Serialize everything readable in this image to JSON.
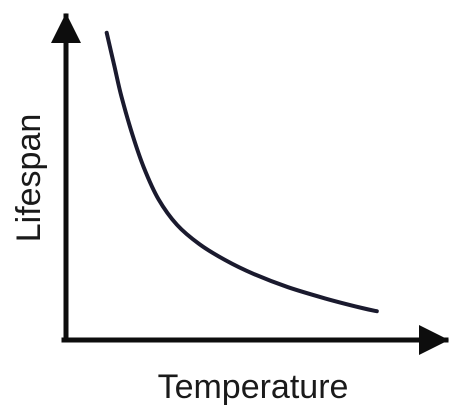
{
  "chart_data": {
    "type": "line",
    "xlabel": "Temperature",
    "ylabel": "Lifespan",
    "xlim": [
      0,
      10
    ],
    "ylim": [
      0,
      10
    ],
    "grid": false,
    "legend": "none",
    "axis_color": "#0d0d0d",
    "series": [
      {
        "color": "#1a1a2e",
        "x": [
          1.1,
          1.3,
          1.5,
          1.8,
          2.1,
          2.5,
          3.0,
          3.6,
          4.3,
          5.1,
          6.0,
          7.0,
          8.0,
          8.4
        ],
        "y": [
          9.6,
          8.6,
          7.6,
          6.4,
          5.4,
          4.4,
          3.6,
          3.0,
          2.5,
          2.05,
          1.65,
          1.3,
          1.0,
          0.9
        ]
      }
    ]
  }
}
